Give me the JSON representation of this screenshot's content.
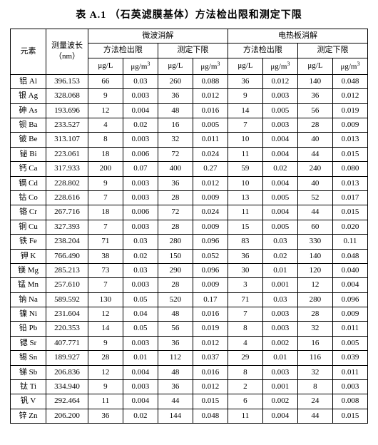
{
  "title": "表 A.1  （石英滤膜基体）方法检出限和测定下限",
  "headers": {
    "element": "元素",
    "wavelength": "测量波长\n（nm）",
    "group1": "微波消解",
    "group2": "电热板消解",
    "mdl": "方法检出限",
    "loq": "测定下限",
    "u_ugL": "μg/L",
    "u_ugm3": "μg/m³"
  },
  "rows": [
    {
      "el": "铝 Al",
      "wl": "396.153",
      "a": "66",
      "b": "0.03",
      "c": "260",
      "d": "0.088",
      "e": "36",
      "f": "0.012",
      "g": "140",
      "h": "0.048"
    },
    {
      "el": "银 Ag",
      "wl": "328.068",
      "a": "9",
      "b": "0.003",
      "c": "36",
      "d": "0.012",
      "e": "9",
      "f": "0.003",
      "g": "36",
      "h": "0.012"
    },
    {
      "el": "砷 As",
      "wl": "193.696",
      "a": "12",
      "b": "0.004",
      "c": "48",
      "d": "0.016",
      "e": "14",
      "f": "0.005",
      "g": "56",
      "h": "0.019"
    },
    {
      "el": "钡 Ba",
      "wl": "233.527",
      "a": "4",
      "b": "0.02",
      "c": "16",
      "d": "0.005",
      "e": "7",
      "f": "0.003",
      "g": "28",
      "h": "0.009"
    },
    {
      "el": "铍 Be",
      "wl": "313.107",
      "a": "8",
      "b": "0.003",
      "c": "32",
      "d": "0.011",
      "e": "10",
      "f": "0.004",
      "g": "40",
      "h": "0.013"
    },
    {
      "el": "铋 Bi",
      "wl": "223.061",
      "a": "18",
      "b": "0.006",
      "c": "72",
      "d": "0.024",
      "e": "11",
      "f": "0.004",
      "g": "44",
      "h": "0.015"
    },
    {
      "el": "钙 Ca",
      "wl": "317.933",
      "a": "200",
      "b": "0.07",
      "c": "400",
      "d": "0.27",
      "e": "59",
      "f": "0.02",
      "g": "240",
      "h": "0.080"
    },
    {
      "el": "镉 Cd",
      "wl": "228.802",
      "a": "9",
      "b": "0.003",
      "c": "36",
      "d": "0.012",
      "e": "10",
      "f": "0.004",
      "g": "40",
      "h": "0.013"
    },
    {
      "el": "钴 Co",
      "wl": "228.616",
      "a": "7",
      "b": "0.003",
      "c": "28",
      "d": "0.009",
      "e": "13",
      "f": "0.005",
      "g": "52",
      "h": "0.017"
    },
    {
      "el": "铬 Cr",
      "wl": "267.716",
      "a": "18",
      "b": "0.006",
      "c": "72",
      "d": "0.024",
      "e": "11",
      "f": "0.004",
      "g": "44",
      "h": "0.015"
    },
    {
      "el": "铜 Cu",
      "wl": "327.393",
      "a": "7",
      "b": "0.003",
      "c": "28",
      "d": "0.009",
      "e": "15",
      "f": "0.005",
      "g": "60",
      "h": "0.020"
    },
    {
      "el": "铁 Fe",
      "wl": "238.204",
      "a": "71",
      "b": "0.03",
      "c": "280",
      "d": "0.096",
      "e": "83",
      "f": "0.03",
      "g": "330",
      "h": "0.11"
    },
    {
      "el": "钾 K",
      "wl": "766.490",
      "a": "38",
      "b": "0.02",
      "c": "150",
      "d": "0.052",
      "e": "36",
      "f": "0.02",
      "g": "140",
      "h": "0.048"
    },
    {
      "el": "镁 Mg",
      "wl": "285.213",
      "a": "73",
      "b": "0.03",
      "c": "290",
      "d": "0.096",
      "e": "30",
      "f": "0.01",
      "g": "120",
      "h": "0.040"
    },
    {
      "el": "锰 Mn",
      "wl": "257.610",
      "a": "7",
      "b": "0.003",
      "c": "28",
      "d": "0.009",
      "e": "3",
      "f": "0.001",
      "g": "12",
      "h": "0.004"
    },
    {
      "el": "钠 Na",
      "wl": "589.592",
      "a": "130",
      "b": "0.05",
      "c": "520",
      "d": "0.17",
      "e": "71",
      "f": "0.03",
      "g": "280",
      "h": "0.096"
    },
    {
      "el": "镍 Ni",
      "wl": "231.604",
      "a": "12",
      "b": "0.04",
      "c": "48",
      "d": "0.016",
      "e": "7",
      "f": "0.003",
      "g": "28",
      "h": "0.009"
    },
    {
      "el": "铅 Pb",
      "wl": "220.353",
      "a": "14",
      "b": "0.05",
      "c": "56",
      "d": "0.019",
      "e": "8",
      "f": "0.003",
      "g": "32",
      "h": "0.011"
    },
    {
      "el": "锶 Sr",
      "wl": "407.771",
      "a": "9",
      "b": "0.003",
      "c": "36",
      "d": "0.012",
      "e": "4",
      "f": "0.002",
      "g": "16",
      "h": "0.005"
    },
    {
      "el": "锡 Sn",
      "wl": "189.927",
      "a": "28",
      "b": "0.01",
      "c": "112",
      "d": "0.037",
      "e": "29",
      "f": "0.01",
      "g": "116",
      "h": "0.039"
    },
    {
      "el": "锑 Sb",
      "wl": "206.836",
      "a": "12",
      "b": "0.004",
      "c": "48",
      "d": "0.016",
      "e": "8",
      "f": "0.003",
      "g": "32",
      "h": "0.011"
    },
    {
      "el": "钛 Ti",
      "wl": "334.940",
      "a": "9",
      "b": "0.003",
      "c": "36",
      "d": "0.012",
      "e": "2",
      "f": "0.001",
      "g": "8",
      "h": "0.003"
    },
    {
      "el": "钒 V",
      "wl": "292.464",
      "a": "11",
      "b": "0.004",
      "c": "44",
      "d": "0.015",
      "e": "6",
      "f": "0.002",
      "g": "24",
      "h": "0.008"
    },
    {
      "el": "锌 Zn",
      "wl": "206.200",
      "a": "36",
      "b": "0.02",
      "c": "144",
      "d": "0.048",
      "e": "11",
      "f": "0.004",
      "g": "44",
      "h": "0.015"
    }
  ],
  "style": {
    "background_color": "#ffffff",
    "text_color": "#000000",
    "border_color": "#000000",
    "title_fontsize_pt": 14,
    "body_fontsize_pt": 11,
    "font_family": "SimSun"
  }
}
